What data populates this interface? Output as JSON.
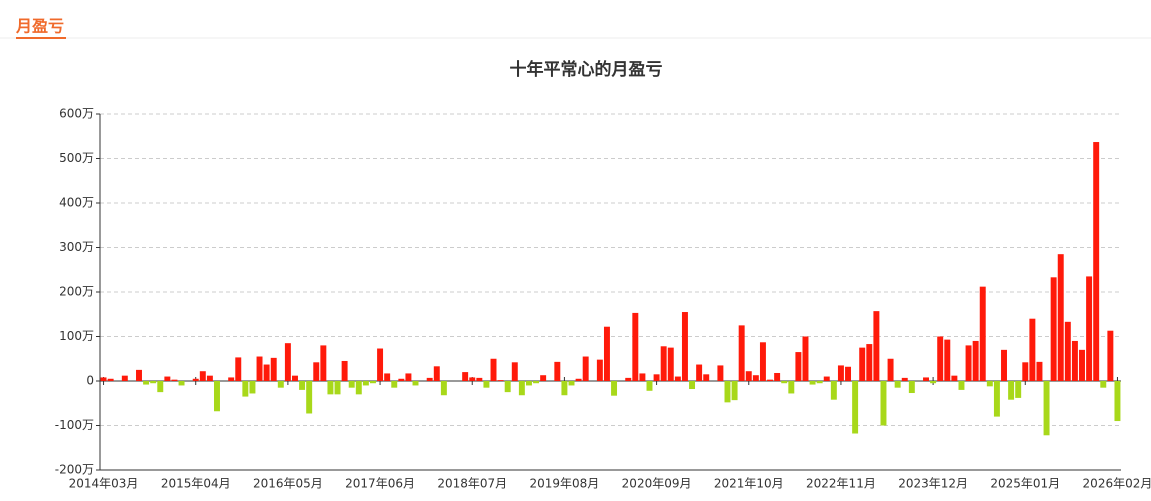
{
  "header": {
    "tab": "月盈亏"
  },
  "chart_data": {
    "type": "bar",
    "title": "十年平常心的月盈亏",
    "categories": [
      "2014年03月",
      null,
      null,
      null,
      null,
      null,
      null,
      null,
      null,
      null,
      null,
      null,
      null,
      "2015年04月",
      null,
      null,
      null,
      null,
      null,
      null,
      null,
      null,
      null,
      null,
      null,
      null,
      "2016年05月",
      null,
      null,
      null,
      null,
      null,
      null,
      null,
      null,
      null,
      null,
      null,
      null,
      "2017年06月",
      null,
      null,
      null,
      null,
      null,
      null,
      null,
      null,
      null,
      null,
      null,
      null,
      "2018年07月",
      null,
      null,
      null,
      null,
      null,
      null,
      null,
      null,
      null,
      null,
      null,
      null,
      "2019年08月",
      null,
      null,
      null,
      null,
      null,
      null,
      null,
      null,
      null,
      null,
      null,
      null,
      "2020年09月",
      null,
      null,
      null,
      null,
      null,
      null,
      null,
      null,
      null,
      null,
      null,
      null,
      "2021年10月",
      null,
      null,
      null,
      null,
      null,
      null,
      null,
      null,
      null,
      null,
      null,
      null,
      "2022年11月",
      null,
      null,
      null,
      null,
      null,
      null,
      null,
      null,
      null,
      null,
      null,
      null,
      "2023年12月",
      null,
      null,
      null,
      null,
      null,
      null,
      null,
      null,
      null,
      null,
      null,
      null,
      "2025年01月",
      null,
      null,
      null,
      null,
      null,
      null,
      null,
      null,
      null,
      null,
      null,
      null,
      "2026年02月"
    ],
    "values": [
      8,
      5,
      0,
      12,
      0,
      25,
      -8,
      -5,
      -25,
      10,
      3,
      -10,
      0,
      5,
      22,
      12,
      -68,
      0,
      8,
      53,
      -35,
      -28,
      55,
      37,
      52,
      -15,
      85,
      12,
      -20,
      -73,
      42,
      80,
      -30,
      -30,
      45,
      -15,
      -30,
      -10,
      -5,
      73,
      17,
      -15,
      5,
      17,
      -10,
      0,
      7,
      33,
      -32,
      0,
      0,
      20,
      8,
      7,
      -15,
      50,
      2,
      -25,
      42,
      -32,
      -10,
      -5,
      13,
      0,
      43,
      -32,
      -10,
      5,
      55,
      0,
      48,
      122,
      -33,
      0,
      7,
      153,
      17,
      -22,
      15,
      78,
      75,
      10,
      155,
      -18,
      37,
      15,
      0,
      35,
      -48,
      -43,
      125,
      22,
      13,
      87,
      3,
      18,
      -5,
      -28,
      65,
      100,
      -8,
      -5,
      10,
      -42,
      35,
      32,
      -118,
      75,
      83,
      157,
      -100,
      50,
      -15,
      7,
      -27,
      0,
      8,
      -5,
      100,
      93,
      12,
      -20,
      80,
      90,
      212,
      -12,
      -80,
      70,
      -42,
      -38,
      42,
      140,
      43,
      -122,
      233,
      285,
      133,
      90,
      70,
      235,
      537,
      -15,
      113,
      -90
    ],
    "positive_color": "#ff1a0a",
    "negative_color": "#a8d81a",
    "ylim": [
      -200,
      600
    ],
    "yticks": [
      {
        "value": -200,
        "label": "-200万"
      },
      {
        "value": -100,
        "label": "-100万"
      },
      0,
      {
        "value": 100,
        "label": "100万"
      },
      {
        "value": 200,
        "label": "200万"
      },
      {
        "value": 300,
        "label": "300万"
      },
      {
        "value": 400,
        "label": "400万"
      },
      {
        "value": 500,
        "label": "500万"
      },
      {
        "value": 600,
        "label": "600万"
      }
    ],
    "grid": true
  }
}
